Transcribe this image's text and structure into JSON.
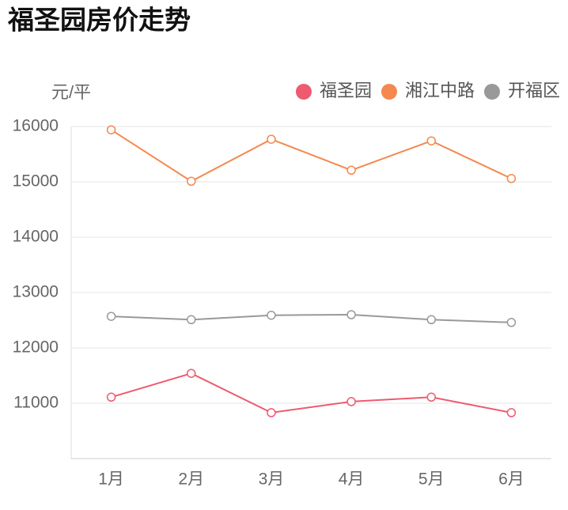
{
  "chart_data": {
    "type": "line",
    "title": "福圣园房价走势",
    "y_label": "元/平",
    "categories": [
      "1月",
      "2月",
      "3月",
      "4月",
      "5月",
      "6月"
    ],
    "series": [
      {
        "name": "福圣园",
        "color": "#ee5a70",
        "values": [
          11110,
          11540,
          10830,
          11030,
          11110,
          10830
        ]
      },
      {
        "name": "湘江中路",
        "color": "#f5884f",
        "values": [
          15940,
          15010,
          15770,
          15210,
          15740,
          15060
        ]
      },
      {
        "name": "开福区",
        "color": "#999999",
        "values": [
          12570,
          12510,
          12590,
          12600,
          12510,
          12460
        ]
      }
    ],
    "ylim": [
      10000,
      16000
    ],
    "yticks": [
      11000,
      12000,
      13000,
      14000,
      15000,
      16000
    ],
    "grid": true
  }
}
